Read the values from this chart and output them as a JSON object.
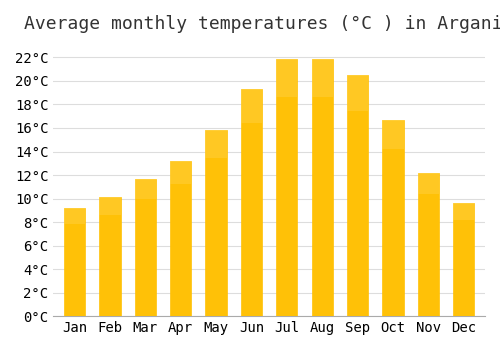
{
  "title": "Average monthly temperatures (°C ) in Arganil",
  "months": [
    "Jan",
    "Feb",
    "Mar",
    "Apr",
    "May",
    "Jun",
    "Jul",
    "Aug",
    "Sep",
    "Oct",
    "Nov",
    "Dec"
  ],
  "temperatures": [
    9.2,
    10.1,
    11.7,
    13.2,
    15.8,
    19.3,
    21.9,
    21.9,
    20.5,
    16.7,
    12.2,
    9.6
  ],
  "bar_color_top": "#FFC107",
  "bar_color_bottom": "#FFB300",
  "bar_edge_color": "#FFA000",
  "background_color": "#FFFFFF",
  "grid_color": "#DDDDDD",
  "ylim": [
    0,
    23
  ],
  "ytick_step": 2,
  "title_fontsize": 13,
  "tick_fontsize": 10,
  "tick_font": "monospace"
}
